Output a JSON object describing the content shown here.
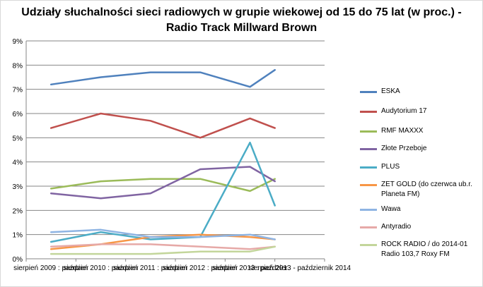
{
  "chart_data": {
    "type": "line",
    "title_line1": "Udziały słuchalności sieci radiowych w grupie wiekowej od 15 do 75 lat (w proc.) -",
    "title_line2": "Radio Track Millward Brown",
    "xlabel": "",
    "ylabel": "",
    "ylim": [
      0,
      9
    ],
    "yticks": [
      "0%",
      "1%",
      "2%",
      "3%",
      "4%",
      "5%",
      "6%",
      "7%",
      "8%",
      "9%"
    ],
    "categories": [
      "sierpień 2009 : paździer",
      "sierpień 2010 : paździer",
      "sierpień 2011 : paździer",
      "sierpień 2012 : paździer",
      "sierpień 2013 : paździer",
      "sierpień 2013 - październik 2014"
    ],
    "category_labels": [
      "sierpień 2009 : paździer",
      "sierpień 2010 : paździer",
      "sierpień 2011 : paździer",
      "sierpień 2012 : paździer",
      "sierpień 2013 : paździer",
      "sierpień 2013 - październik 2014"
    ],
    "series": [
      {
        "name": "ESKA",
        "color": "#4f81bd",
        "x": [
          0,
          1,
          2,
          3,
          4,
          4.5
        ],
        "values": [
          7.2,
          7.5,
          7.7,
          7.7,
          7.1,
          7.8
        ]
      },
      {
        "name": "Audytorium 17",
        "color": "#c0504d",
        "x": [
          0,
          1,
          2,
          3,
          4,
          4.5
        ],
        "values": [
          5.4,
          6.0,
          5.7,
          5.0,
          5.8,
          5.4
        ]
      },
      {
        "name": "RMF MAXXX",
        "color": "#9bbb59",
        "x": [
          0,
          1,
          2,
          3,
          4,
          4.5
        ],
        "values": [
          2.9,
          3.2,
          3.3,
          3.3,
          2.8,
          3.3
        ]
      },
      {
        "name": "Złote Przeboje",
        "color": "#8064a2",
        "x": [
          0,
          1,
          2,
          3,
          4,
          4.5
        ],
        "values": [
          2.7,
          2.5,
          2.7,
          3.7,
          3.8,
          3.2
        ]
      },
      {
        "name": "PLUS",
        "color": "#4bacc6",
        "x": [
          0,
          1,
          2,
          3,
          4,
          4.5
        ],
        "values": [
          0.7,
          1.1,
          0.8,
          0.9,
          4.8,
          2.2
        ]
      },
      {
        "name": "ZET GOLD (do czerwca ub.r. Planeta FM)",
        "color": "#f79646",
        "x": [
          0,
          1,
          2,
          3,
          4,
          4.5
        ],
        "values": [
          0.4,
          0.6,
          0.9,
          1.0,
          0.9,
          0.8
        ]
      },
      {
        "name": "Wawa",
        "color": "#8eb4e3",
        "x": [
          0,
          1,
          2,
          3,
          4,
          4.5
        ],
        "values": [
          1.1,
          1.2,
          0.9,
          0.9,
          1.0,
          0.8
        ]
      },
      {
        "name": "Antyradio",
        "color": "#e6a9a7",
        "x": [
          0,
          1,
          2,
          3,
          4,
          4.5
        ],
        "values": [
          0.5,
          0.6,
          0.6,
          0.5,
          0.4,
          0.5
        ]
      },
      {
        "name": "ROCK RADIO  / do 2014-01 Radio 103,7 Roxy FM",
        "color": "#c3d69b",
        "x": [
          0,
          1,
          2,
          3,
          4,
          4.5
        ],
        "values": [
          0.2,
          0.2,
          0.2,
          0.3,
          0.3,
          0.5
        ]
      }
    ],
    "legend_position": "right",
    "grid": true
  }
}
